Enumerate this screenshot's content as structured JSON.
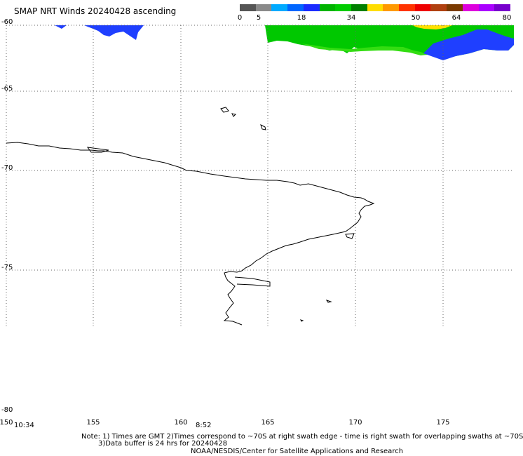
{
  "title": "SMAP NRT Winds 20240428 ascending",
  "colorbar": {
    "labels": [
      "0",
      "5",
      "18",
      "34",
      "50",
      "64",
      "80"
    ],
    "colors": [
      "#555555",
      "#8a8a8a",
      "#00aaff",
      "#0066ff",
      "#1a2bff",
      "#00b300",
      "#00cc00",
      "#007f00",
      "#ffdd00",
      "#ff9900",
      "#ff3300",
      "#ee0000",
      "#b04010",
      "#7a3a00",
      "#dd00dd",
      "#aa00ff",
      "#7700cc"
    ]
  },
  "lat_labels": [
    "-60",
    "-65",
    "-70",
    "-75",
    "-80"
  ],
  "lon_labels": [
    "150",
    "155",
    "160",
    "165",
    "170",
    "175"
  ],
  "time_labels": [
    "10:34",
    "8:52"
  ],
  "notes": {
    "line1": "Note: 1) Times are GMT 2)Times correspond to ~70S at right swath edge - time is right swath for overlapping swaths at ~70S",
    "line2": "3)Data buffer is 24 hrs for 20240428",
    "line3": "NOAA/NESDIS/Center for Satellite Applications and Research"
  },
  "wind_colors": {
    "blue": "#1f3fff",
    "green": "#00c800",
    "light_green": "#33dd11",
    "yellow": "#ffe000"
  },
  "icons": {
    "coastline": "coastline-outline",
    "islands": "island-outline"
  }
}
